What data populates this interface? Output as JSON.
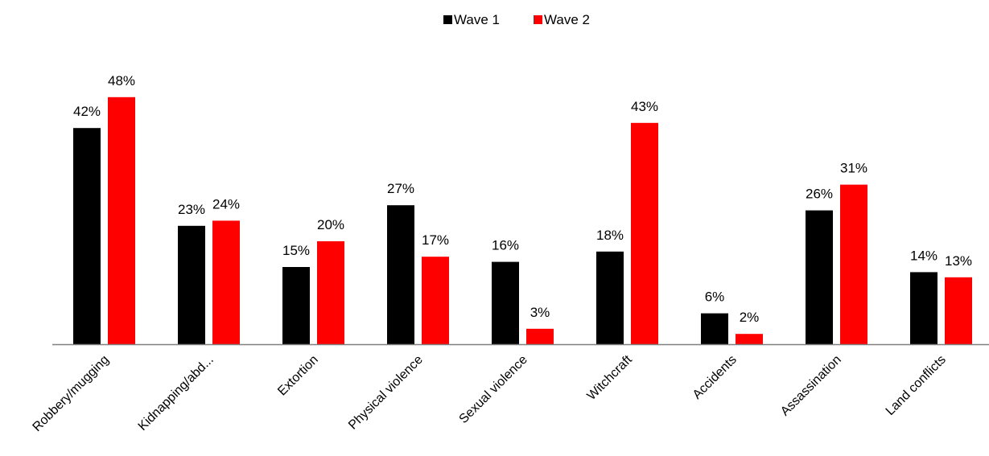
{
  "chart_data": {
    "type": "bar",
    "categories": [
      "Robbery/mugging",
      "Kidnapping/abd...",
      "Extortion",
      "Physical violence",
      "Sexual violence",
      "Witchcraft",
      "Accidents",
      "Assassination",
      "Land conflicts"
    ],
    "series": [
      {
        "name": "Wave 1",
        "color": "#000000",
        "values": [
          42,
          23,
          15,
          27,
          16,
          18,
          6,
          26,
          14
        ],
        "labels": [
          "42%",
          "23%",
          "15%",
          "27%",
          "16%",
          "18%",
          "6%",
          "26%",
          "14%"
        ]
      },
      {
        "name": "Wave 2",
        "color": "#ff0000",
        "values": [
          48,
          24,
          20,
          17,
          3,
          43,
          2,
          31,
          13
        ],
        "labels": [
          "48%",
          "24%",
          "20%",
          "17%",
          "3%",
          "43%",
          "2%",
          "31%",
          "13%"
        ]
      }
    ],
    "value_unit": "%",
    "ylim": [
      0,
      50
    ],
    "grid": false,
    "legend_position": "top-center",
    "axis_color": "#808080"
  }
}
